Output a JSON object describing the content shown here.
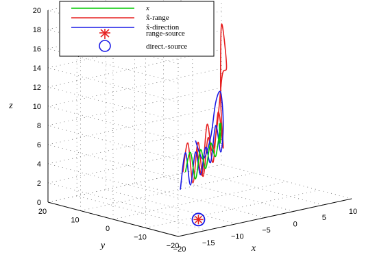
{
  "chart_data": {
    "type": "line",
    "projection": "3d",
    "grid": true,
    "legend_placement": "top-left",
    "xlabel": "x",
    "ylabel": "y",
    "zlabel": "z",
    "xlim": [
      -20,
      10
    ],
    "ylim": [
      -20,
      20
    ],
    "zlim": [
      0,
      20
    ],
    "x_ticks": [
      "−20",
      "−15",
      "−10",
      "−5",
      "0",
      "5",
      "10"
    ],
    "y_ticks": [
      "−20",
      "−10",
      "0",
      "10",
      "20"
    ],
    "z_ticks": [
      "0",
      "2",
      "4",
      "6",
      "8",
      "10",
      "12",
      "14",
      "16",
      "18",
      "20"
    ],
    "series": [
      {
        "name": "x",
        "color": "#00c800",
        "points": [
          [
            -12,
            -8,
            4.6
          ],
          [
            -10,
            -6,
            6.2
          ],
          [
            -8,
            -4,
            3.0
          ],
          [
            -6,
            -2,
            5.6
          ],
          [
            -4,
            0,
            3.2
          ],
          [
            -2,
            2,
            5.4
          ],
          [
            0,
            4,
            3.6
          ],
          [
            2,
            6,
            6.6
          ],
          [
            3,
            8,
            4.2
          ],
          [
            4,
            10,
            6.0
          ]
        ]
      },
      {
        "name": "x̂-range",
        "color": "#e62020",
        "points": [
          [
            -13,
            -9,
            4.8
          ],
          [
            -11,
            -7,
            7.4
          ],
          [
            -9,
            -5,
            2.8
          ],
          [
            -7,
            -3,
            6.6
          ],
          [
            -5,
            -1,
            2.6
          ],
          [
            -3,
            1,
            6.2
          ],
          [
            -1,
            3,
            3.2
          ],
          [
            1,
            5,
            8.0
          ],
          [
            3,
            7,
            3.8
          ],
          [
            2,
            6,
            9.0
          ],
          [
            1,
            4,
            17.2
          ],
          [
            3,
            6,
            12.4
          ],
          [
            0,
            2,
            12.2
          ],
          [
            -2,
            0,
            7.4
          ],
          [
            -4,
            -2,
            5.2
          ],
          [
            -6,
            -4,
            8.4
          ],
          [
            -8,
            -6,
            3.6
          ],
          [
            -10,
            -8,
            6.8
          ]
        ]
      },
      {
        "name": "x̂-direction",
        "color": "#1a1ae6",
        "points": [
          [
            -14,
            -10,
            3.2
          ],
          [
            -12,
            -8,
            6.6
          ],
          [
            -10,
            -6,
            2.8
          ],
          [
            -8,
            -4,
            5.8
          ],
          [
            -6,
            -2,
            3.0
          ],
          [
            -4,
            0,
            5.4
          ],
          [
            -2,
            2,
            3.4
          ],
          [
            0,
            4,
            6.8
          ],
          [
            2,
            6,
            3.6
          ],
          [
            3,
            7,
            6.2
          ],
          [
            2,
            6,
            9.8
          ],
          [
            0,
            4,
            9.2
          ],
          [
            -2,
            2,
            6.0
          ],
          [
            -5,
            -1,
            4.4
          ],
          [
            -8,
            -4,
            7.0
          ]
        ]
      }
    ],
    "markers": [
      {
        "name": "range-source",
        "symbol": "asterisk",
        "color": "#e62020",
        "position": [
          -12,
          -12,
          0
        ]
      },
      {
        "name": "direct.-source",
        "symbol": "circle",
        "color": "#1a1ae6",
        "position": [
          -12,
          -12,
          0
        ]
      }
    ],
    "legend": {
      "entries": [
        {
          "label": "x",
          "style": "line",
          "color": "#00c800"
        },
        {
          "label": "x̂-range",
          "style": "line",
          "color": "#e62020"
        },
        {
          "label": "x̂-direction",
          "style": "line",
          "color": "#1a1ae6"
        },
        {
          "label": "range-source",
          "style": "asterisk",
          "color": "#e62020"
        },
        {
          "label": "direct.-source",
          "style": "circle",
          "color": "#1a1ae6"
        }
      ]
    }
  }
}
